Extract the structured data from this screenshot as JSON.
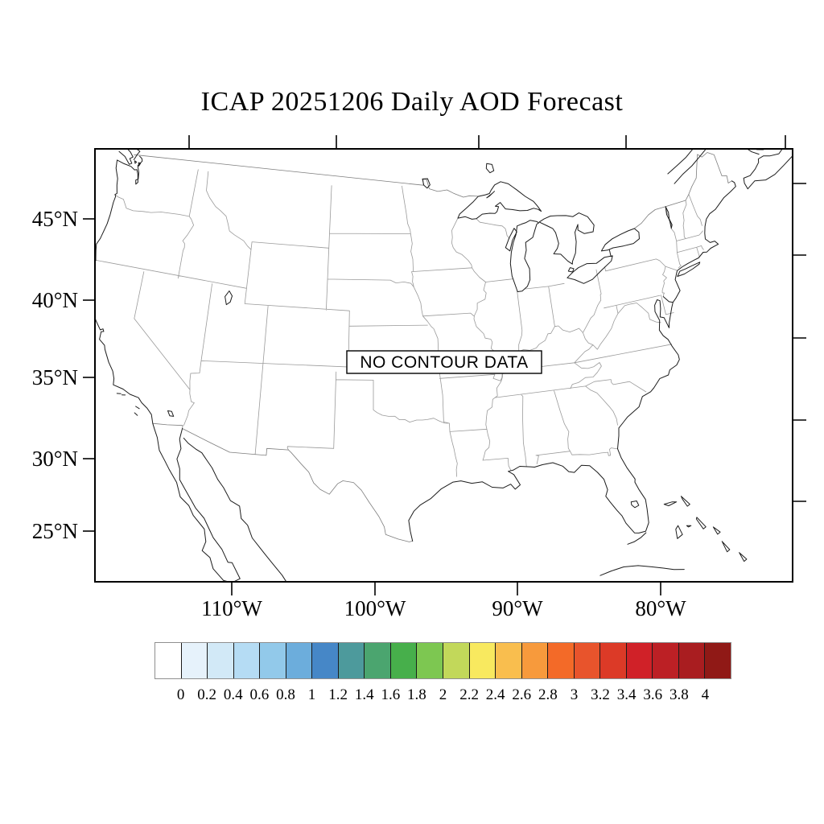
{
  "title": "ICAP 20251206 Daily AOD Forecast",
  "map": {
    "no_data_label": "NO CONTOUR DATA",
    "y_axis_labels": [
      "45°N",
      "40°N",
      "35°N",
      "30°N",
      "25°N"
    ],
    "x_axis_labels": [
      "110°W",
      "100°W",
      "90°W",
      "80°W"
    ]
  },
  "colorbar": {
    "tick_labels": [
      "0",
      "0.2",
      "0.4",
      "0.6",
      "0.8",
      "1",
      "1.2",
      "1.4",
      "1.6",
      "1.8",
      "2",
      "2.2",
      "2.4",
      "2.6",
      "2.8",
      "3",
      "3.2",
      "3.4",
      "3.6",
      "3.8",
      "4"
    ],
    "colors": [
      "#ffffff",
      "#e6f2fb",
      "#d2e9f7",
      "#b5dcf4",
      "#92c9ea",
      "#6caddc",
      "#4687c7",
      "#4d9a9c",
      "#4ba56f",
      "#47af4b",
      "#7dc751",
      "#c2d85a",
      "#f8e95f",
      "#f9be4e",
      "#f79a3c",
      "#f36a28",
      "#e8542c",
      "#dc3a27",
      "#d02128",
      "#bc2025",
      "#a91d20",
      "#901916"
    ]
  }
}
